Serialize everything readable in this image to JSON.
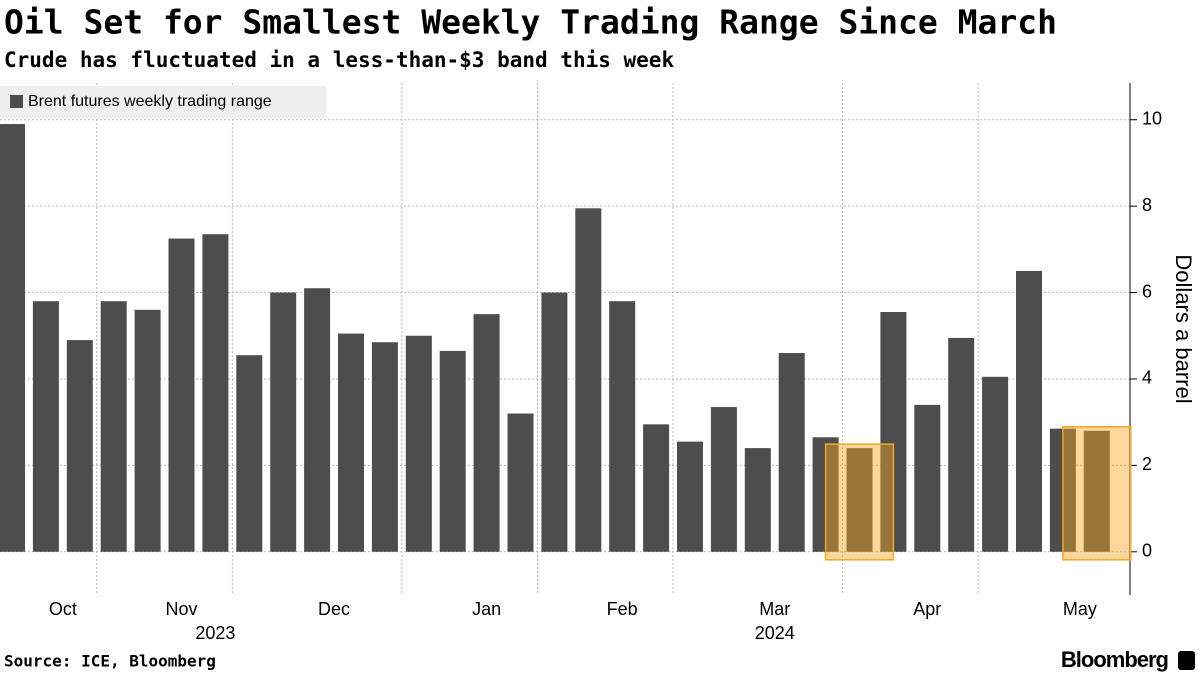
{
  "chart_data": {
    "type": "bar",
    "title": "Oil Set for Smallest Weekly Trading Range Since March",
    "subtitle": "Crude has fluctuated in a less-than-$3 band this week",
    "y_axis_label": "Dollars a barrel",
    "source": "Source: ICE, Bloomberg",
    "brand": "Bloomberg",
    "categories": [
      null,
      null,
      null,
      null,
      null,
      null,
      null,
      null,
      null,
      null,
      null,
      null,
      null,
      null,
      null,
      null,
      null,
      null,
      null,
      null,
      null,
      null,
      null,
      null,
      null,
      null,
      null,
      null,
      null,
      null,
      null,
      null,
      null
    ],
    "series": [
      {
        "name": "Brent futures weekly trading range",
        "color": "#4d4d4d",
        "values": [
          9.9,
          5.8,
          4.9,
          5.8,
          5.6,
          7.25,
          7.35,
          4.55,
          6.0,
          6.1,
          5.05,
          4.85,
          5.0,
          4.65,
          5.5,
          3.2,
          6.0,
          7.95,
          5.8,
          2.95,
          2.55,
          3.35,
          2.4,
          4.6,
          2.65,
          2.4,
          5.55,
          3.4,
          4.95,
          4.05,
          6.5,
          2.85,
          2.8
        ]
      }
    ],
    "xticks": [
      {
        "value": 1.5,
        "label": "Oct"
      },
      {
        "value": 5,
        "label": "Nov"
      },
      {
        "value": 9.5,
        "label": "Dec"
      },
      {
        "value": 14,
        "label": "Jan"
      },
      {
        "value": 18,
        "label": "Feb"
      },
      {
        "value": 22.5,
        "label": "Mar"
      },
      {
        "value": 27,
        "label": "Apr"
      },
      {
        "value": 31.5,
        "label": "May"
      }
    ],
    "year_labels": [
      {
        "value": 6,
        "label": "2023"
      },
      {
        "value": 22.5,
        "label": "2024"
      }
    ],
    "xgrid": [
      3,
      7,
      12,
      16,
      20,
      25,
      29
    ],
    "highlight": [
      25,
      32
    ],
    "highlight_color": "#f5a623",
    "ylim": [
      -1,
      10.85
    ],
    "yticks": [
      0,
      2,
      4,
      6,
      8,
      10
    ],
    "grid": true,
    "legend": "top-left"
  }
}
